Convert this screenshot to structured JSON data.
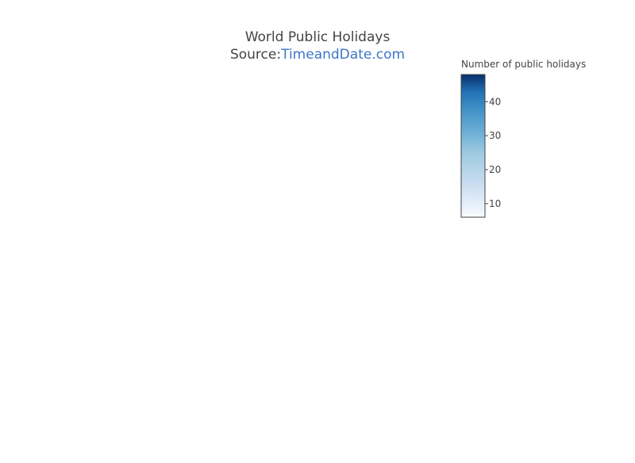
{
  "title": {
    "line1": "World Public Holidays",
    "source_prefix": "Source:",
    "source_link": "TimeandDate.com",
    "link_color": "#3d75c9"
  },
  "colorbar": {
    "title": "Number of public holidays",
    "min": 6,
    "max": 48,
    "ticks": [
      10,
      20,
      30,
      40
    ],
    "colorscale": [
      [
        0.0,
        "#f7fbff"
      ],
      [
        0.25,
        "#c6dbef"
      ],
      [
        0.45,
        "#9ecae1"
      ],
      [
        0.6,
        "#6baed6"
      ],
      [
        0.75,
        "#4292c6"
      ],
      [
        0.88,
        "#2171b5"
      ],
      [
        1.0,
        "#08306b"
      ]
    ]
  }
}
